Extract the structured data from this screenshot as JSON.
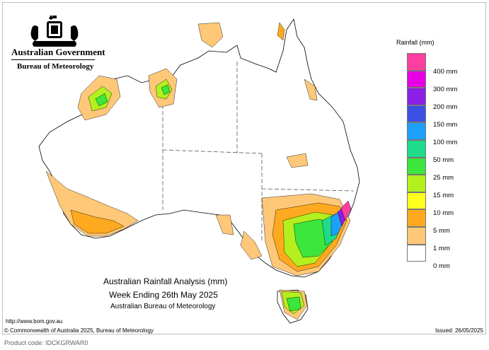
{
  "header": {
    "government": "Australian Government",
    "bureau": "Bureau of Meteorology"
  },
  "legend": {
    "title": "Rainfall (mm)",
    "items": [
      {
        "label": "400 mm",
        "color": "#ff3fa0"
      },
      {
        "label": "300 mm",
        "color": "#e600e6"
      },
      {
        "label": "200 mm",
        "color": "#8c1ee6"
      },
      {
        "label": "150 mm",
        "color": "#3c50e6"
      },
      {
        "label": "100 mm",
        "color": "#1ea0ff"
      },
      {
        "label": "50 mm",
        "color": "#1edc8c"
      },
      {
        "label": "25 mm",
        "color": "#3ce63c"
      },
      {
        "label": "15 mm",
        "color": "#b4f01e"
      },
      {
        "label": "10 mm",
        "color": "#ffff1e"
      },
      {
        "label": "5 mm",
        "color": "#ffaa1e"
      },
      {
        "label": "1 mm",
        "color": "#ffc878"
      },
      {
        "label": "0 mm",
        "color": "#ffffff"
      }
    ]
  },
  "caption": {
    "line1": "Australian Rainfall Analysis (mm)",
    "line2": "Week Ending 26th May 2025",
    "line3": "Australian Bureau of Meteorology"
  },
  "footer": {
    "url": "http://www.bom.gov.au",
    "copyright": "© Commonwealth of Australia 2025, Bureau of Meteorology",
    "issued": "Issued: 26/05/2025",
    "product_code": "Product code: IDCKGRWAR0"
  }
}
